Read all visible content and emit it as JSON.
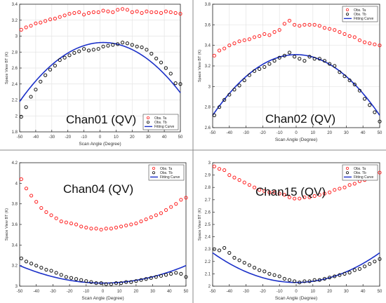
{
  "chart_data": [
    {
      "type": "scatter",
      "title": "Chan01 (QV)",
      "xlabel": "Scan Angle (Degree)",
      "ylabel": "Space View BT (K)",
      "xlim": [
        -50,
        50
      ],
      "ylim": [
        1.8,
        3.4
      ],
      "xticks": [
        -50,
        -40,
        -30,
        -20,
        -10,
        0,
        10,
        20,
        30,
        40,
        50
      ],
      "yticks": [
        1.8,
        2.0,
        2.2,
        2.4,
        2.6,
        2.8,
        3.0,
        3.2,
        3.4
      ],
      "ytick_labels": [
        "1.8",
        "2",
        "2.2",
        "2.4",
        "2.6",
        "2.8",
        "3",
        "3.2",
        "3.4"
      ],
      "grid": true,
      "legend_position": "bottom-right",
      "x": [
        -49,
        -46,
        -43,
        -40,
        -37,
        -34,
        -31,
        -28,
        -25,
        -22,
        -19,
        -16,
        -13,
        -10,
        -7,
        -4,
        -1,
        2,
        5,
        8,
        11,
        14,
        17,
        20,
        23,
        26,
        29,
        32,
        35,
        38,
        41,
        44,
        47,
        50
      ],
      "series": [
        {
          "name": "Obs. Ta",
          "kind": "marker",
          "color": "#ff2020",
          "values": [
            3.08,
            3.11,
            3.13,
            3.16,
            3.17,
            3.19,
            3.21,
            3.22,
            3.24,
            3.26,
            3.28,
            3.29,
            3.3,
            3.27,
            3.29,
            3.3,
            3.3,
            3.32,
            3.31,
            3.3,
            3.33,
            3.34,
            3.33,
            3.3,
            3.31,
            3.29,
            3.31,
            3.3,
            3.3,
            3.29,
            3.31,
            3.3,
            3.29,
            3.28
          ]
        },
        {
          "name": "Obs. Tb",
          "kind": "marker",
          "color": "#111111",
          "values": [
            1.99,
            2.11,
            2.24,
            2.33,
            2.43,
            2.51,
            2.58,
            2.63,
            2.7,
            2.73,
            2.76,
            2.79,
            2.81,
            2.84,
            2.82,
            2.83,
            2.84,
            2.87,
            2.88,
            2.89,
            2.9,
            2.92,
            2.91,
            2.89,
            2.87,
            2.86,
            2.83,
            2.78,
            2.72,
            2.67,
            2.6,
            2.53,
            2.41,
            2.4
          ]
        },
        {
          "name": "Fitting Curve",
          "kind": "parabola",
          "color": "#1a2fc8",
          "peak_x": 2,
          "peak_y": 2.92,
          "edge_x": 50,
          "edge_y": 2.29
        }
      ]
    },
    {
      "type": "scatter",
      "title": "Chan02 (QV)",
      "xlabel": "Scan Angle (Degree)",
      "ylabel": "Space View BT (K)",
      "xlim": [
        -50,
        50
      ],
      "ylim": [
        2.6,
        3.8
      ],
      "xticks": [
        -50,
        -40,
        -30,
        -20,
        -10,
        0,
        10,
        20,
        30,
        40,
        50
      ],
      "yticks": [
        2.6,
        2.8,
        3.0,
        3.2,
        3.4,
        3.6,
        3.8
      ],
      "ytick_labels": [
        "2.6",
        "2.8",
        "3",
        "3.2",
        "3.4",
        "3.6",
        "3.8"
      ],
      "grid": true,
      "legend_position": "top-right",
      "x": [
        -49,
        -46,
        -43,
        -40,
        -37,
        -34,
        -31,
        -28,
        -25,
        -22,
        -19,
        -16,
        -13,
        -10,
        -7,
        -4,
        -1,
        2,
        5,
        8,
        11,
        14,
        17,
        20,
        23,
        26,
        29,
        32,
        35,
        38,
        41,
        44,
        47,
        50
      ],
      "series": [
        {
          "name": "Obs. Ta",
          "kind": "marker",
          "color": "#ff2020",
          "values": [
            3.3,
            3.35,
            3.37,
            3.4,
            3.42,
            3.44,
            3.45,
            3.46,
            3.48,
            3.49,
            3.51,
            3.5,
            3.53,
            3.55,
            3.61,
            3.64,
            3.6,
            3.59,
            3.6,
            3.6,
            3.6,
            3.59,
            3.57,
            3.56,
            3.55,
            3.53,
            3.51,
            3.49,
            3.48,
            3.45,
            3.43,
            3.42,
            3.41,
            3.4
          ]
        },
        {
          "name": "Obs. Tb",
          "kind": "marker",
          "color": "#111111",
          "values": [
            2.72,
            2.8,
            2.87,
            2.92,
            2.97,
            3.01,
            3.06,
            3.11,
            3.15,
            3.17,
            3.19,
            3.22,
            3.25,
            3.28,
            3.3,
            3.33,
            3.29,
            3.27,
            3.25,
            3.29,
            3.27,
            3.27,
            3.25,
            3.22,
            3.2,
            3.14,
            3.1,
            3.06,
            3.02,
            2.96,
            2.88,
            2.82,
            2.75,
            2.66
          ]
        },
        {
          "name": "Fitting Curve",
          "kind": "parabola",
          "color": "#1a2fc8",
          "peak_x": 0,
          "peak_y": 3.31,
          "edge_x": 50,
          "edge_y": 2.72
        }
      ]
    },
    {
      "type": "scatter",
      "title": "Chan04 (QV)",
      "xlabel": "Scan Angle (Degree)",
      "ylabel": "Space View BT (K)",
      "xlim": [
        -50,
        50
      ],
      "ylim": [
        3.0,
        4.2
      ],
      "xticks": [
        -50,
        -40,
        -30,
        -20,
        -10,
        0,
        10,
        20,
        30,
        40,
        50
      ],
      "yticks": [
        3.0,
        3.2,
        3.4,
        3.6,
        3.8,
        4.0,
        4.2
      ],
      "ytick_labels": [
        "3",
        "3.2",
        "3.4",
        "3.6",
        "3.8",
        "4",
        "4.2"
      ],
      "grid": false,
      "legend_position": "top-right",
      "x": [
        -49,
        -46,
        -43,
        -40,
        -37,
        -34,
        -31,
        -28,
        -25,
        -22,
        -19,
        -16,
        -13,
        -10,
        -7,
        -4,
        -1,
        2,
        5,
        8,
        11,
        14,
        17,
        20,
        23,
        26,
        29,
        32,
        35,
        38,
        41,
        44,
        47,
        50
      ],
      "series": [
        {
          "name": "Obs. Ta",
          "kind": "marker",
          "color": "#ff2020",
          "values": [
            4.04,
            3.95,
            3.88,
            3.82,
            3.76,
            3.72,
            3.69,
            3.66,
            3.63,
            3.62,
            3.61,
            3.6,
            3.58,
            3.57,
            3.56,
            3.56,
            3.55,
            3.56,
            3.56,
            3.57,
            3.58,
            3.59,
            3.6,
            3.61,
            3.63,
            3.65,
            3.67,
            3.69,
            3.71,
            3.74,
            3.77,
            3.8,
            3.84,
            3.86
          ]
        },
        {
          "name": "Obs. Tb",
          "kind": "marker",
          "color": "#111111",
          "values": [
            3.27,
            3.24,
            3.22,
            3.2,
            3.18,
            3.16,
            3.15,
            3.13,
            3.11,
            3.09,
            3.08,
            3.07,
            3.06,
            3.05,
            3.04,
            3.03,
            3.03,
            3.02,
            3.02,
            3.03,
            3.03,
            3.04,
            3.04,
            3.05,
            3.06,
            3.07,
            3.08,
            3.09,
            3.1,
            3.11,
            3.12,
            3.13,
            3.12,
            3.09
          ]
        },
        {
          "name": "Fitting Curve",
          "kind": "parabola",
          "color": "#1a2fc8",
          "peak_x": 0,
          "peak_y": 3.03,
          "edge_x": 50,
          "edge_y": 3.2
        }
      ]
    },
    {
      "type": "scatter",
      "title": "Chan15 (QV)",
      "xlabel": "Scan Angle (Degree)",
      "ylabel": "Space View BT (K)",
      "xlim": [
        -50,
        50
      ],
      "ylim": [
        2.0,
        3.0
      ],
      "xticks": [
        -50,
        -40,
        -30,
        -20,
        -10,
        0,
        10,
        20,
        30,
        40,
        50
      ],
      "yticks": [
        2.0,
        2.1,
        2.2,
        2.3,
        2.4,
        2.5,
        2.6,
        2.7,
        2.8,
        2.9,
        3.0
      ],
      "ytick_labels": [
        "2",
        "2.1",
        "2.2",
        "2.3",
        "2.4",
        "2.5",
        "2.6",
        "2.7",
        "2.8",
        "2.9",
        "3"
      ],
      "grid": false,
      "legend_position": "top-right",
      "x": [
        -49,
        -46,
        -43,
        -40,
        -37,
        -34,
        -31,
        -28,
        -25,
        -22,
        -19,
        -16,
        -13,
        -10,
        -7,
        -4,
        -1,
        2,
        5,
        8,
        11,
        14,
        17,
        20,
        23,
        26,
        29,
        32,
        35,
        38,
        41,
        44,
        47,
        50
      ],
      "series": [
        {
          "name": "Obs. Ta",
          "kind": "marker",
          "color": "#ff2020",
          "values": [
            2.97,
            2.95,
            2.94,
            2.9,
            2.88,
            2.86,
            2.84,
            2.82,
            2.8,
            2.78,
            2.77,
            2.76,
            2.76,
            2.75,
            2.74,
            2.72,
            2.71,
            2.71,
            2.72,
            2.72,
            2.73,
            2.74,
            2.75,
            2.76,
            2.78,
            2.79,
            2.8,
            2.82,
            2.83,
            2.85,
            2.86,
            2.88,
            2.9,
            2.92
          ]
        },
        {
          "name": "Obs. Tb",
          "kind": "marker",
          "color": "#111111",
          "values": [
            2.3,
            2.29,
            2.31,
            2.27,
            2.23,
            2.21,
            2.19,
            2.17,
            2.15,
            2.13,
            2.12,
            2.1,
            2.09,
            2.08,
            2.06,
            2.05,
            2.04,
            2.03,
            2.04,
            2.04,
            2.05,
            2.05,
            2.06,
            2.07,
            2.08,
            2.09,
            2.1,
            2.11,
            2.13,
            2.14,
            2.16,
            2.18,
            2.2,
            2.22
          ]
        },
        {
          "name": "Fitting Curve",
          "kind": "parabola",
          "color": "#1a2fc8",
          "peak_x": 0,
          "peak_y": 2.03,
          "edge_x": 50,
          "edge_y": 2.27
        }
      ]
    }
  ]
}
